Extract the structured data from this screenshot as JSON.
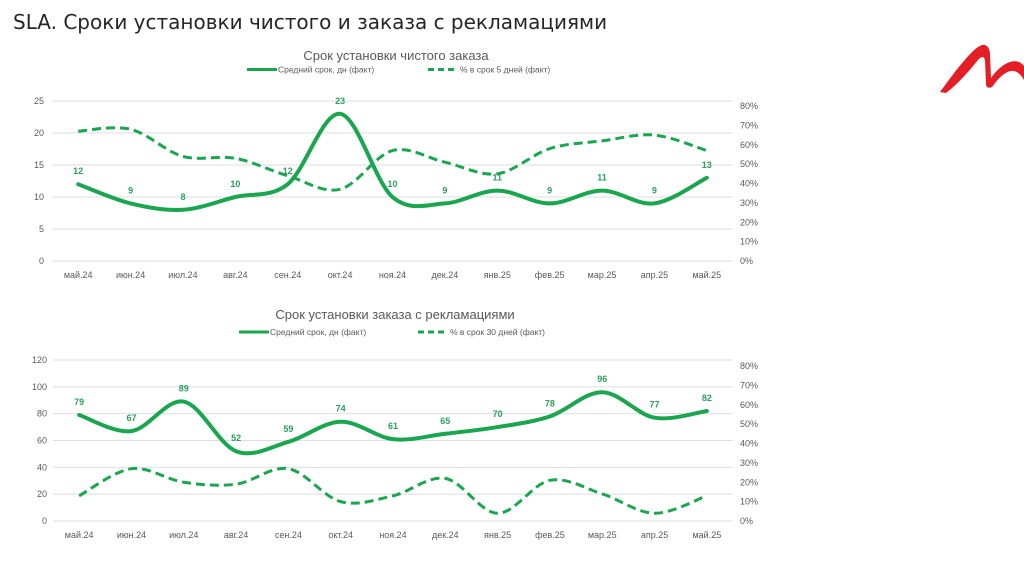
{
  "page": {
    "title": "SLA. Сроки установки чистого и заказа с рекламациями"
  },
  "logo": {
    "icon": "red-m-swoosh-logo",
    "color": "#e31e24"
  },
  "colors": {
    "line": "#1aa64f",
    "data_label": "#2ba05c",
    "grid": "#dedede",
    "axis_text": "#595959"
  },
  "chart_data": [
    {
      "type": "line",
      "title": "Срок установки чистого заказа",
      "xlabel": "",
      "ylabel": "",
      "legend": "top",
      "grid": true,
      "categories": [
        "май.24",
        "июн.24",
        "июл.24",
        "авг.24",
        "сен.24",
        "окт.24",
        "ноя.24",
        "дек.24",
        "янв.25",
        "фев.25",
        "мар.25",
        "апр.25",
        "май.25"
      ],
      "ylim": [
        0,
        25
      ],
      "y_ticks": [
        0,
        5,
        10,
        15,
        20,
        25
      ],
      "y2lim": [
        0,
        0.8
      ],
      "y2_ticks": [
        "0%",
        "10%",
        "20%",
        "30%",
        "40%",
        "50%",
        "60%",
        "70%",
        "80%"
      ],
      "series": [
        {
          "name": "Средний срок, дн (факт)",
          "axis": "left",
          "style": "solid",
          "show_data_labels": true,
          "values": [
            12,
            9,
            8,
            10,
            12,
            23,
            10,
            9,
            11,
            9,
            11,
            9,
            13
          ]
        },
        {
          "name": "% в срок 5 дней (факт)",
          "axis": "right",
          "style": "dashed",
          "show_data_labels": false,
          "values": [
            0.67,
            0.68,
            0.54,
            0.53,
            0.44,
            0.37,
            0.57,
            0.51,
            0.45,
            0.58,
            0.62,
            0.65,
            0.57
          ]
        }
      ]
    },
    {
      "type": "line",
      "title": "Срок установки заказа с рекламациями",
      "xlabel": "",
      "ylabel": "",
      "legend": "top",
      "grid": true,
      "categories": [
        "май.24",
        "июн.24",
        "июл.24",
        "авг.24",
        "сен.24",
        "окт.24",
        "ноя.24",
        "дек.24",
        "янв.25",
        "фев.25",
        "мар.25",
        "апр.25",
        "май.25"
      ],
      "ylim": [
        0,
        120
      ],
      "y_ticks": [
        0,
        20,
        40,
        60,
        80,
        100,
        120
      ],
      "y2lim": [
        0,
        0.8
      ],
      "y2_ticks": [
        "0%",
        "10%",
        "20%",
        "30%",
        "40%",
        "50%",
        "60%",
        "70%",
        "80%"
      ],
      "series": [
        {
          "name": "Средний срок, дн (факт)",
          "axis": "left",
          "style": "solid",
          "show_data_labels": true,
          "values": [
            79,
            67,
            89,
            52,
            59,
            74,
            61,
            65,
            70,
            78,
            96,
            77,
            82
          ]
        },
        {
          "name": "% в срок 30 дней (факт)",
          "axis": "right",
          "style": "dashed",
          "show_data_labels": false,
          "values": [
            0.13,
            0.27,
            0.2,
            0.19,
            0.27,
            0.1,
            0.13,
            0.22,
            0.04,
            0.21,
            0.14,
            0.04,
            0.13
          ]
        }
      ]
    }
  ]
}
